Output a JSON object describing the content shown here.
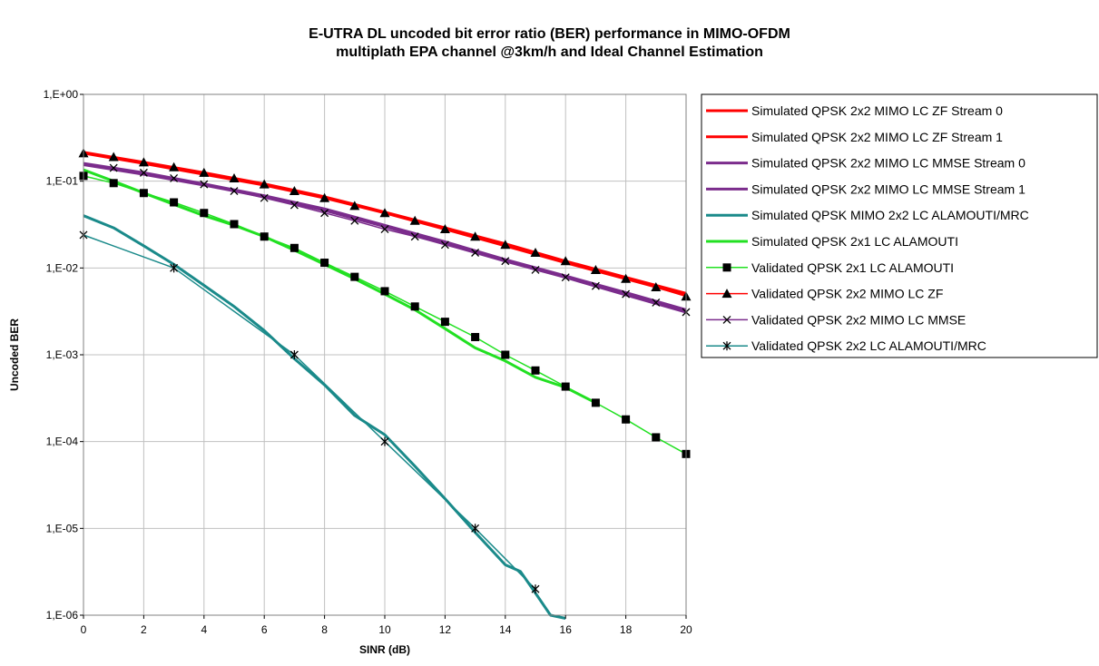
{
  "chart_data": {
    "type": "line",
    "title_line1": "E-UTRA DL uncoded bit error ratio (BER) performance in MIMO-OFDM",
    "title_line2": "multiplath EPA channel @3km/h and Ideal Channel Estimation",
    "xlabel": "SINR (dB)",
    "ylabel": "Uncoded BER",
    "xlim": [
      0,
      20
    ],
    "ylim": [
      1e-06,
      1
    ],
    "yscale": "log",
    "grid": true,
    "legend_position": "right",
    "x_ticks": [
      "0",
      "2",
      "4",
      "6",
      "8",
      "10",
      "12",
      "14",
      "16",
      "18",
      "20"
    ],
    "y_ticks": [
      "1,E-06",
      "1,E-05",
      "1,E-04",
      "1,E-03",
      "1,E-02",
      "1,E-01",
      "1,E+00"
    ],
    "series": [
      {
        "name": "Simulated QPSK 2x2 MIMO LC ZF Stream 0",
        "color": "#ff0000",
        "marker": "none",
        "width": 3,
        "x": [
          0,
          2,
          4,
          6,
          8,
          10,
          12,
          14,
          16,
          18,
          20
        ],
        "y": [
          0.215,
          0.165,
          0.125,
          0.093,
          0.066,
          0.044,
          0.029,
          0.019,
          0.012,
          0.0078,
          0.0051
        ]
      },
      {
        "name": "Simulated QPSK 2x2 MIMO LC ZF Stream 1",
        "color": "#ff0000",
        "marker": "none",
        "width": 3,
        "x": [
          0,
          2,
          4,
          6,
          8,
          10,
          12,
          14,
          16,
          18,
          20
        ],
        "y": [
          0.21,
          0.16,
          0.12,
          0.09,
          0.064,
          0.043,
          0.028,
          0.018,
          0.0115,
          0.0075,
          0.0049
        ]
      },
      {
        "name": "Simulated QPSK 2x2 MIMO LC MMSE Stream 0",
        "color": "#7b2c8c",
        "marker": "none",
        "width": 3,
        "x": [
          0,
          2,
          4,
          6,
          8,
          10,
          12,
          14,
          16,
          18,
          20
        ],
        "y": [
          0.16,
          0.125,
          0.093,
          0.068,
          0.048,
          0.031,
          0.02,
          0.0125,
          0.0081,
          0.0052,
          0.0033
        ]
      },
      {
        "name": "Simulated QPSK 2x2 MIMO LC MMSE Stream 1",
        "color": "#7b2c8c",
        "marker": "none",
        "width": 3,
        "x": [
          0,
          2,
          4,
          6,
          8,
          10,
          12,
          14,
          16,
          18,
          20
        ],
        "y": [
          0.155,
          0.12,
          0.09,
          0.066,
          0.046,
          0.03,
          0.019,
          0.012,
          0.0078,
          0.0049,
          0.0031
        ]
      },
      {
        "name": "Simulated QPSK MIMO 2x2 LC ALAMOUTI/MRC",
        "color": "#1a8a8a",
        "marker": "none",
        "width": 3,
        "x": [
          0,
          1,
          2,
          3,
          4,
          5,
          6,
          7,
          8,
          9,
          10,
          11,
          12,
          13,
          14,
          14.5,
          15,
          15.5,
          16
        ],
        "y": [
          0.04,
          0.029,
          0.018,
          0.011,
          0.0063,
          0.0036,
          0.0019,
          0.0009,
          0.00045,
          0.0002,
          0.00012,
          5.2e-05,
          2.2e-05,
          9e-06,
          3.8e-06,
          3.2e-06,
          1.8e-06,
          1e-06,
          9.2e-07
        ]
      },
      {
        "name": "Simulated QPSK 2x1 LC ALAMOUTI",
        "color": "#22e022",
        "marker": "none",
        "width": 3,
        "x": [
          0,
          1,
          2,
          3,
          4,
          5,
          6,
          7,
          8,
          9,
          10,
          11,
          12,
          13,
          14,
          15,
          16,
          17
        ],
        "y": [
          0.135,
          0.1,
          0.073,
          0.054,
          0.04,
          0.031,
          0.023,
          0.016,
          0.011,
          0.0075,
          0.005,
          0.0033,
          0.002,
          0.0012,
          0.00085,
          0.00055,
          0.00042,
          0.00028
        ]
      },
      {
        "name": "Validated QPSK 2x1 LC ALAMOUTI",
        "color": "#22e022",
        "marker": "square",
        "width": 1.5,
        "x": [
          0,
          1,
          2,
          3,
          4,
          5,
          6,
          7,
          8,
          9,
          10,
          11,
          12,
          13,
          14,
          15,
          16,
          17,
          18,
          19,
          20
        ],
        "y": [
          0.115,
          0.095,
          0.073,
          0.057,
          0.043,
          0.032,
          0.023,
          0.017,
          0.0115,
          0.0079,
          0.0054,
          0.0036,
          0.0024,
          0.0016,
          0.001,
          0.00066,
          0.00043,
          0.00028,
          0.00018,
          0.000112,
          7.2e-05
        ]
      },
      {
        "name": "Validated QPSK 2x2 MIMO LC ZF",
        "color": "#ff0000",
        "marker": "triangle",
        "width": 1.5,
        "x": [
          0,
          1,
          2,
          3,
          4,
          5,
          6,
          7,
          8,
          9,
          10,
          11,
          12,
          13,
          14,
          15,
          16,
          17,
          18,
          19,
          20
        ],
        "y": [
          0.21,
          0.19,
          0.165,
          0.145,
          0.125,
          0.108,
          0.092,
          0.077,
          0.064,
          0.052,
          0.043,
          0.035,
          0.028,
          0.023,
          0.0185,
          0.015,
          0.012,
          0.0095,
          0.0075,
          0.006,
          0.0047
        ]
      },
      {
        "name": "Validated QPSK 2x2 MIMO LC MMSE",
        "color": "#7b2c8c",
        "marker": "x",
        "width": 1.5,
        "x": [
          1,
          2,
          3,
          4,
          5,
          6,
          7,
          8,
          9,
          10,
          11,
          12,
          13,
          14,
          15,
          16,
          17,
          18,
          19,
          20
        ],
        "y": [
          0.142,
          0.125,
          0.108,
          0.092,
          0.077,
          0.064,
          0.053,
          0.043,
          0.035,
          0.028,
          0.023,
          0.0185,
          0.015,
          0.012,
          0.0095,
          0.0078,
          0.0062,
          0.005,
          0.004,
          0.0031
        ]
      },
      {
        "name": "Validated QPSK 2x2 LC ALAMOUTI/MRC",
        "color": "#1a8a8a",
        "marker": "asterisk",
        "width": 1.5,
        "x": [
          0,
          3,
          7,
          10,
          13,
          15
        ],
        "y": [
          0.024,
          0.01,
          0.001,
          0.0001,
          1e-05,
          2e-06
        ]
      }
    ]
  }
}
